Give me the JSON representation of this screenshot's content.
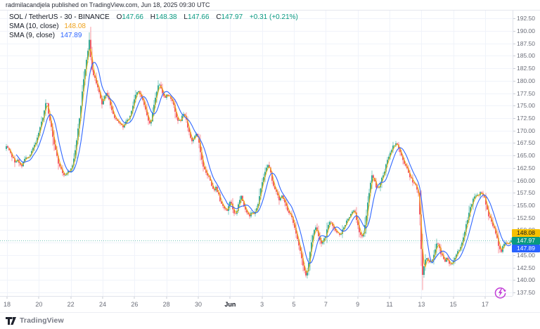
{
  "attribution": "radmilacandjela published on TradingView.com, Jun 18, 2025 09:30 UTC",
  "legend": {
    "symbol": "SOL / TetherUS - 30 - BINANCE",
    "ohlc": [
      {
        "k": "O",
        "v": "147.66"
      },
      {
        "k": "H",
        "v": "148.38"
      },
      {
        "k": "L",
        "v": "147.66"
      },
      {
        "k": "C",
        "v": "147.97"
      }
    ],
    "change": "+0.31 (+0.21%)",
    "sma1": {
      "label": "SMA (10, close)",
      "value": "148.08"
    },
    "sma2": {
      "label": "SMA (9, close)",
      "value": "147.89"
    }
  },
  "price_axis": {
    "labels": [
      "192.50",
      "190.00",
      "187.50",
      "185.00",
      "182.50",
      "180.00",
      "177.50",
      "175.00",
      "172.50",
      "170.00",
      "167.50",
      "165.00",
      "162.50",
      "160.00",
      "157.50",
      "155.00",
      "152.50",
      "150.00",
      "145.00",
      "142.50",
      "140.00",
      "137.50"
    ],
    "tags": [
      {
        "text": "148.08",
        "bg": "#f6c000",
        "fg": "#131722"
      },
      {
        "text": "147.97",
        "bg": "#089981",
        "fg": "#ffffff"
      },
      {
        "text": "147.89",
        "bg": "#2962ff",
        "fg": "#ffffff"
      }
    ]
  },
  "time_axis": {
    "ticks": [
      {
        "label": "18"
      },
      {
        "label": "20"
      },
      {
        "label": "22"
      },
      {
        "label": "24"
      },
      {
        "label": "26"
      },
      {
        "label": "28"
      },
      {
        "label": "30"
      },
      {
        "label": "Jun",
        "major": true
      },
      {
        "label": "3"
      },
      {
        "label": "5"
      },
      {
        "label": "7"
      },
      {
        "label": "9"
      },
      {
        "label": "11"
      },
      {
        "label": "13"
      },
      {
        "label": "15"
      },
      {
        "label": "17"
      }
    ]
  },
  "footer": {
    "brand": "TradingView"
  },
  "chart_data": {
    "type": "candlestick",
    "title": "SOL / TetherUS",
    "interval": "30",
    "exchange": "BINANCE",
    "current": {
      "open": 147.66,
      "high": 148.38,
      "low": 147.66,
      "close": 147.97,
      "change": 0.31,
      "change_pct": 0.21
    },
    "current_price": 147.97,
    "ylim": [
      136.8,
      194.08
    ],
    "price_ticks": [
      192.5,
      190,
      187.5,
      185,
      182.5,
      180,
      177.5,
      175,
      172.5,
      170,
      167.5,
      165,
      162.5,
      160,
      157.5,
      155,
      152.5,
      150,
      147.5,
      145,
      142.5,
      140,
      137.5
    ],
    "colors": {
      "up": "#089981",
      "down": "#f23645",
      "grid": "#f0f3fa",
      "dotted": "rgba(8,153,129,0.55)"
    },
    "indicators": [
      {
        "name": "SMA (10, close)",
        "color": "#ecb51a",
        "legend_value": 148.08
      },
      {
        "name": "SMA (9, close)",
        "color": "#2f66ff",
        "legend_value": 147.89
      }
    ],
    "anchors": [
      [
        8,
        166.3
      ],
      [
        11,
        166.8
      ],
      [
        14,
        166.0
      ],
      [
        17,
        165.0
      ],
      [
        20,
        164.2
      ],
      [
        23,
        163.6
      ],
      [
        26,
        163.9
      ],
      [
        29,
        163.3
      ],
      [
        32,
        163.0
      ],
      [
        35,
        163.8
      ],
      [
        38,
        164.6
      ],
      [
        41,
        164.2
      ],
      [
        44,
        165.0
      ],
      [
        47,
        166.0
      ],
      [
        50,
        167.0
      ],
      [
        53,
        168.0
      ],
      [
        56,
        169.5
      ],
      [
        59,
        171.0
      ],
      [
        62,
        172.8
      ],
      [
        65,
        174.8
      ],
      [
        67,
        176.3
      ],
      [
        69,
        174.5
      ],
      [
        71,
        172.5
      ],
      [
        74,
        170.5
      ],
      [
        77,
        168.0
      ],
      [
        80,
        166.0
      ],
      [
        83,
        164.0
      ],
      [
        86,
        162.8
      ],
      [
        89,
        161.8
      ],
      [
        92,
        160.8
      ],
      [
        95,
        161.3
      ],
      [
        98,
        161.8
      ],
      [
        101,
        162.0
      ],
      [
        104,
        163.0
      ],
      [
        107,
        164.8
      ],
      [
        110,
        168.0
      ],
      [
        113,
        171.5
      ],
      [
        116,
        175.0
      ],
      [
        119,
        179.5
      ],
      [
        122,
        182.5
      ],
      [
        125,
        185.0
      ],
      [
        128,
        188.2
      ],
      [
        131,
        183.0
      ],
      [
        134,
        181.0
      ],
      [
        137,
        180.0
      ],
      [
        140,
        178.5
      ],
      [
        143,
        177.5
      ],
      [
        146,
        175.0
      ],
      [
        149,
        176.5
      ],
      [
        152,
        177.5
      ],
      [
        155,
        176.5
      ],
      [
        158,
        175.0
      ],
      [
        161,
        174.0
      ],
      [
        164,
        172.5
      ],
      [
        167,
        172.0
      ],
      [
        170,
        171.5
      ],
      [
        173,
        171.0
      ],
      [
        176,
        170.8
      ],
      [
        179,
        171.5
      ],
      [
        182,
        172.0
      ],
      [
        185,
        172.5
      ],
      [
        188,
        174.0
      ],
      [
        191,
        175.5
      ],
      [
        194,
        177.0
      ],
      [
        197,
        178.0
      ],
      [
        200,
        177.5
      ],
      [
        203,
        176.5
      ],
      [
        206,
        175.0
      ],
      [
        209,
        173.8
      ],
      [
        212,
        172.0
      ],
      [
        215,
        171.0
      ],
      [
        218,
        173.5
      ],
      [
        221,
        176.0
      ],
      [
        224,
        178.0
      ],
      [
        227,
        179.8
      ],
      [
        230,
        178.5
      ],
      [
        233,
        177.0
      ],
      [
        236,
        176.5
      ],
      [
        239,
        177.2
      ],
      [
        242,
        176.8
      ],
      [
        245,
        176.3
      ],
      [
        248,
        175.0
      ],
      [
        251,
        173.0
      ],
      [
        254,
        172.0
      ],
      [
        257,
        171.8
      ],
      [
        260,
        172.8
      ],
      [
        263,
        173.5
      ],
      [
        266,
        172.0
      ],
      [
        269,
        170.0
      ],
      [
        272,
        168.5
      ],
      [
        275,
        167.8
      ],
      [
        278,
        169.0
      ],
      [
        281,
        169.3
      ],
      [
        284,
        167.5
      ],
      [
        287,
        165.0
      ],
      [
        290,
        163.0
      ],
      [
        293,
        161.5
      ],
      [
        296,
        161.0
      ],
      [
        299,
        160.5
      ],
      [
        302,
        159.0
      ],
      [
        305,
        158.0
      ],
      [
        308,
        158.5
      ],
      [
        311,
        157.5
      ],
      [
        314,
        156.0
      ],
      [
        317,
        155.0
      ],
      [
        320,
        154.2
      ],
      [
        323,
        153.8
      ],
      [
        326,
        154.8
      ],
      [
        329,
        155.8
      ],
      [
        332,
        154.0
      ],
      [
        335,
        152.8
      ],
      [
        338,
        154.0
      ],
      [
        341,
        156.0
      ],
      [
        344,
        156.8
      ],
      [
        347,
        155.2
      ],
      [
        350,
        154.0
      ],
      [
        353,
        153.2
      ],
      [
        356,
        152.8
      ],
      [
        359,
        153.5
      ],
      [
        362,
        153.2
      ],
      [
        365,
        154.0
      ],
      [
        368,
        155.5
      ],
      [
        371,
        157.5
      ],
      [
        374,
        159.5
      ],
      [
        377,
        161.0
      ],
      [
        380,
        162.5
      ],
      [
        383,
        163.2
      ],
      [
        386,
        161.5
      ],
      [
        389,
        159.0
      ],
      [
        392,
        158.0
      ],
      [
        395,
        157.2
      ],
      [
        398,
        156.0
      ],
      [
        401,
        157.0
      ],
      [
        404,
        156.5
      ],
      [
        407,
        155.0
      ],
      [
        410,
        154.0
      ],
      [
        413,
        153.5
      ],
      [
        416,
        152.5
      ],
      [
        419,
        151.0
      ],
      [
        422,
        149.5
      ],
      [
        425,
        147.5
      ],
      [
        428,
        146.0
      ],
      [
        431,
        143.5
      ],
      [
        434,
        141.8
      ],
      [
        437,
        140.8
      ],
      [
        440,
        143.5
      ],
      [
        443,
        146.5
      ],
      [
        446,
        149.0
      ],
      [
        449,
        150.8
      ],
      [
        452,
        150.0
      ],
      [
        455,
        148.5
      ],
      [
        458,
        147.3
      ],
      [
        461,
        147.8
      ],
      [
        464,
        149.0
      ],
      [
        467,
        150.5
      ],
      [
        470,
        151.8
      ],
      [
        473,
        151.2
      ],
      [
        476,
        150.2
      ],
      [
        479,
        149.8
      ],
      [
        482,
        149.5
      ],
      [
        485,
        149.2
      ],
      [
        488,
        150.0
      ],
      [
        491,
        151.0
      ],
      [
        494,
        151.8
      ],
      [
        497,
        152.5
      ],
      [
        500,
        153.2
      ],
      [
        503,
        154.0
      ],
      [
        506,
        153.5
      ],
      [
        509,
        151.5
      ],
      [
        512,
        149.8
      ],
      [
        515,
        148.6
      ],
      [
        518,
        149.5
      ],
      [
        521,
        152.0
      ],
      [
        524,
        155.5
      ],
      [
        527,
        158.5
      ],
      [
        530,
        161.0
      ],
      [
        533,
        160.0
      ],
      [
        536,
        158.8
      ],
      [
        539,
        158.5
      ],
      [
        542,
        159.5
      ],
      [
        545,
        160.8
      ],
      [
        548,
        162.0
      ],
      [
        551,
        163.5
      ],
      [
        554,
        164.8
      ],
      [
        557,
        165.8
      ],
      [
        560,
        166.8
      ],
      [
        563,
        167.3
      ],
      [
        566,
        167.2
      ],
      [
        569,
        166.0
      ],
      [
        572,
        164.8
      ],
      [
        575,
        163.8
      ],
      [
        578,
        163.0
      ],
      [
        581,
        162.0
      ],
      [
        584,
        160.8
      ],
      [
        587,
        160.0
      ],
      [
        590,
        159.3
      ],
      [
        593,
        158.8
      ],
      [
        596,
        157.5
      ],
      [
        598,
        153.0
      ],
      [
        600,
        146.0
      ],
      [
        602,
        141.0
      ],
      [
        604,
        143.0
      ],
      [
        607,
        144.8
      ],
      [
        610,
        144.0
      ],
      [
        613,
        143.4
      ],
      [
        616,
        144.2
      ],
      [
        619,
        145.5
      ],
      [
        622,
        147.5
      ],
      [
        625,
        146.8
      ],
      [
        628,
        145.2
      ],
      [
        631,
        144.6
      ],
      [
        634,
        143.9
      ],
      [
        637,
        144.4
      ],
      [
        640,
        143.4
      ],
      [
        643,
        143.0
      ],
      [
        646,
        143.8
      ],
      [
        649,
        145.0
      ],
      [
        652,
        145.8
      ],
      [
        655,
        146.3
      ],
      [
        658,
        147.5
      ],
      [
        661,
        149.3
      ],
      [
        664,
        151.0
      ],
      [
        667,
        152.8
      ],
      [
        670,
        154.5
      ],
      [
        673,
        155.8
      ],
      [
        676,
        156.8
      ],
      [
        679,
        157.3
      ],
      [
        682,
        157.0
      ],
      [
        685,
        157.8
      ],
      [
        687,
        157.5
      ],
      [
        690,
        156.5
      ],
      [
        693,
        154.5
      ],
      [
        696,
        153.0
      ],
      [
        699,
        152.0
      ],
      [
        702,
        151.0
      ],
      [
        705,
        150.0
      ],
      [
        708,
        148.5
      ],
      [
        711,
        146.2
      ],
      [
        714,
        145.8
      ],
      [
        717,
        147.0
      ],
      [
        720,
        147.6
      ],
      [
        723,
        146.9
      ],
      [
        726,
        147.5
      ],
      [
        728,
        147.97
      ]
    ]
  }
}
